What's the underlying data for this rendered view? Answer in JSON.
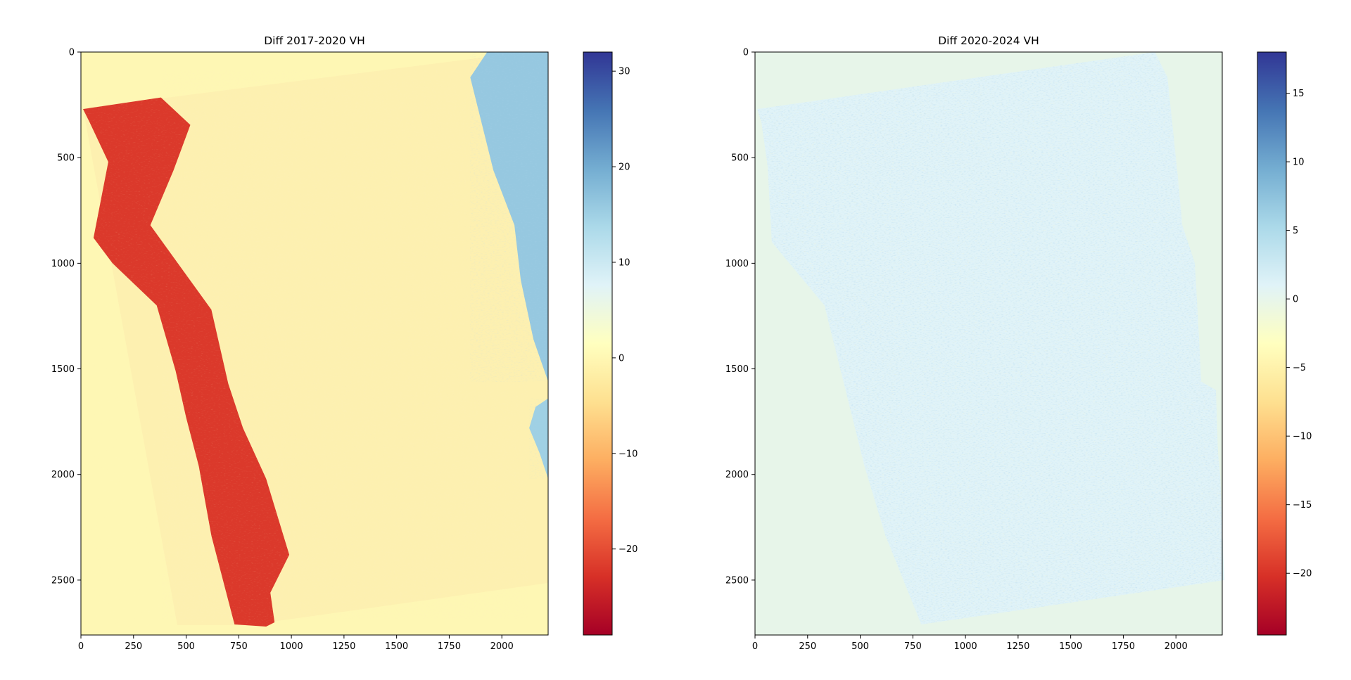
{
  "chart_data": [
    {
      "type": "heatmap",
      "title": "Diff 2017-2020 VH",
      "xlabel": "",
      "ylabel": "",
      "xlim": [
        0,
        2220
      ],
      "ylim": [
        2760,
        0
      ],
      "x_ticks": [
        0,
        250,
        500,
        750,
        1000,
        1250,
        1500,
        1750,
        2000
      ],
      "x_tick_labels": [
        "0",
        "250",
        "500",
        "750",
        "1000",
        "1250",
        "1500",
        "1750",
        "2000"
      ],
      "y_ticks": [
        0,
        500,
        1000,
        1500,
        2000,
        2500
      ],
      "y_tick_labels": [
        "0",
        "500",
        "1000",
        "1500",
        "2000",
        "2500"
      ],
      "colormap": "RdYlBu",
      "background_color": "#fef7b4",
      "colorbar": {
        "vmin": -29,
        "vmax": 32,
        "ticks": [
          -20,
          -10,
          0,
          10,
          20,
          30
        ],
        "tick_labels": [
          "−20",
          "−10",
          "0",
          "10",
          "20",
          "30"
        ]
      },
      "regions": [
        {
          "label": "strong negative change band (west edge)",
          "value": -22,
          "polygon": [
            [
              10,
              270
            ],
            [
              380,
              215
            ],
            [
              520,
              345
            ],
            [
              440,
              560
            ],
            [
              330,
              820
            ],
            [
              620,
              1220
            ],
            [
              700,
              1570
            ],
            [
              770,
              1780
            ],
            [
              880,
              2020
            ],
            [
              990,
              2380
            ],
            [
              900,
              2560
            ],
            [
              920,
              2700
            ],
            [
              880,
              2720
            ],
            [
              730,
              2710
            ],
            [
              620,
              2290
            ],
            [
              560,
              1960
            ],
            [
              500,
              1730
            ],
            [
              450,
              1510
            ],
            [
              360,
              1200
            ],
            [
              150,
              1000
            ],
            [
              60,
              880
            ],
            [
              130,
              520
            ],
            [
              40,
              330
            ]
          ]
        },
        {
          "label": "positive change strip (east edge, upper)",
          "value": 16,
          "polygon": [
            [
              1930,
              0
            ],
            [
              2220,
              0
            ],
            [
              2220,
              1560
            ],
            [
              2150,
              1360
            ],
            [
              2090,
              1080
            ],
            [
              2060,
              820
            ],
            [
              1960,
              560
            ],
            [
              1900,
              320
            ],
            [
              1850,
              120
            ]
          ]
        },
        {
          "label": "positive change strip (east edge, lower)",
          "value": 15,
          "polygon": [
            [
              2220,
              1640
            ],
            [
              2220,
              2020
            ],
            [
              2180,
              1900
            ],
            [
              2130,
              1780
            ],
            [
              2160,
              1680
            ]
          ]
        }
      ]
    },
    {
      "type": "heatmap",
      "title": "Diff 2020-2024 VH",
      "xlabel": "",
      "ylabel": "",
      "xlim": [
        0,
        2220
      ],
      "ylim": [
        2760,
        0
      ],
      "x_ticks": [
        0,
        250,
        500,
        750,
        1000,
        1250,
        1500,
        1750,
        2000
      ],
      "x_tick_labels": [
        "0",
        "250",
        "500",
        "750",
        "1000",
        "1250",
        "1500",
        "1750",
        "2000"
      ],
      "y_ticks": [
        0,
        500,
        1000,
        1500,
        2000,
        2500
      ],
      "y_tick_labels": [
        "0",
        "500",
        "1000",
        "1500",
        "2000",
        "2500"
      ],
      "colormap": "RdYlBu",
      "background_color": "#e7f5e9",
      "colorbar": {
        "vmin": -24.5,
        "vmax": 18,
        "ticks": [
          -20,
          -15,
          -10,
          -5,
          0,
          5,
          10,
          15
        ],
        "tick_labels": [
          "−20",
          "−15",
          "−10",
          "−5",
          "0",
          "5",
          "10",
          "15"
        ]
      },
      "data_footprint": {
        "value": 1,
        "polygon": [
          [
            10,
            270
          ],
          [
            1900,
            0
          ],
          [
            1960,
            120
          ],
          [
            2010,
            600
          ],
          [
            2030,
            820
          ],
          [
            2090,
            1000
          ],
          [
            2110,
            1360
          ],
          [
            2120,
            1560
          ],
          [
            2190,
            1600
          ],
          [
            2200,
            1900
          ],
          [
            2210,
            2000
          ],
          [
            2230,
            2500
          ],
          [
            790,
            2710
          ],
          [
            620,
            2290
          ],
          [
            520,
            1960
          ],
          [
            430,
            1600
          ],
          [
            330,
            1200
          ],
          [
            80,
            900
          ],
          [
            60,
            540
          ],
          [
            30,
            330
          ]
        ]
      }
    }
  ]
}
